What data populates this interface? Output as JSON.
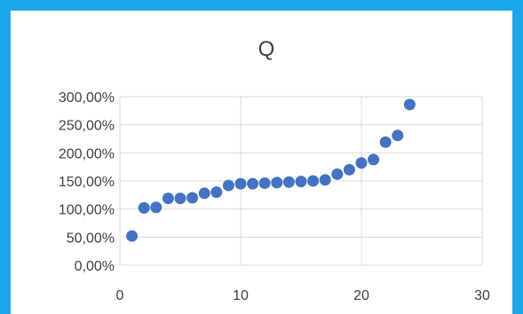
{
  "chart_data": {
    "type": "scatter",
    "title": "Q",
    "xlabel": "",
    "ylabel": "",
    "xlim": [
      0,
      30
    ],
    "ylim": [
      0,
      300
    ],
    "x_ticks": [
      0,
      10,
      20,
      30
    ],
    "x_tick_labels": [
      "0",
      "10",
      "20",
      "30"
    ],
    "y_ticks": [
      0,
      50,
      100,
      150,
      200,
      250,
      300
    ],
    "y_tick_labels": [
      "0,00%",
      "50,00%",
      "100,00%",
      "150,00%",
      "200,00%",
      "250,00%",
      "300,00%"
    ],
    "grid": true,
    "legend": "none",
    "colors": {
      "marker": "#4472c4",
      "grid": "#d9d9d9",
      "frame": "#1ca7ec"
    },
    "series": [
      {
        "x": [
          1,
          2,
          3,
          4,
          5,
          6,
          7,
          8,
          9,
          10,
          11,
          12,
          13,
          14,
          15,
          16,
          17,
          18,
          19,
          20,
          21,
          22,
          23,
          24
        ],
        "y": [
          52,
          102,
          103,
          119,
          119,
          120,
          128,
          130,
          142,
          145,
          145,
          146,
          147,
          148,
          149,
          150,
          152,
          162,
          170,
          182,
          188,
          219,
          231,
          286
        ]
      }
    ]
  }
}
